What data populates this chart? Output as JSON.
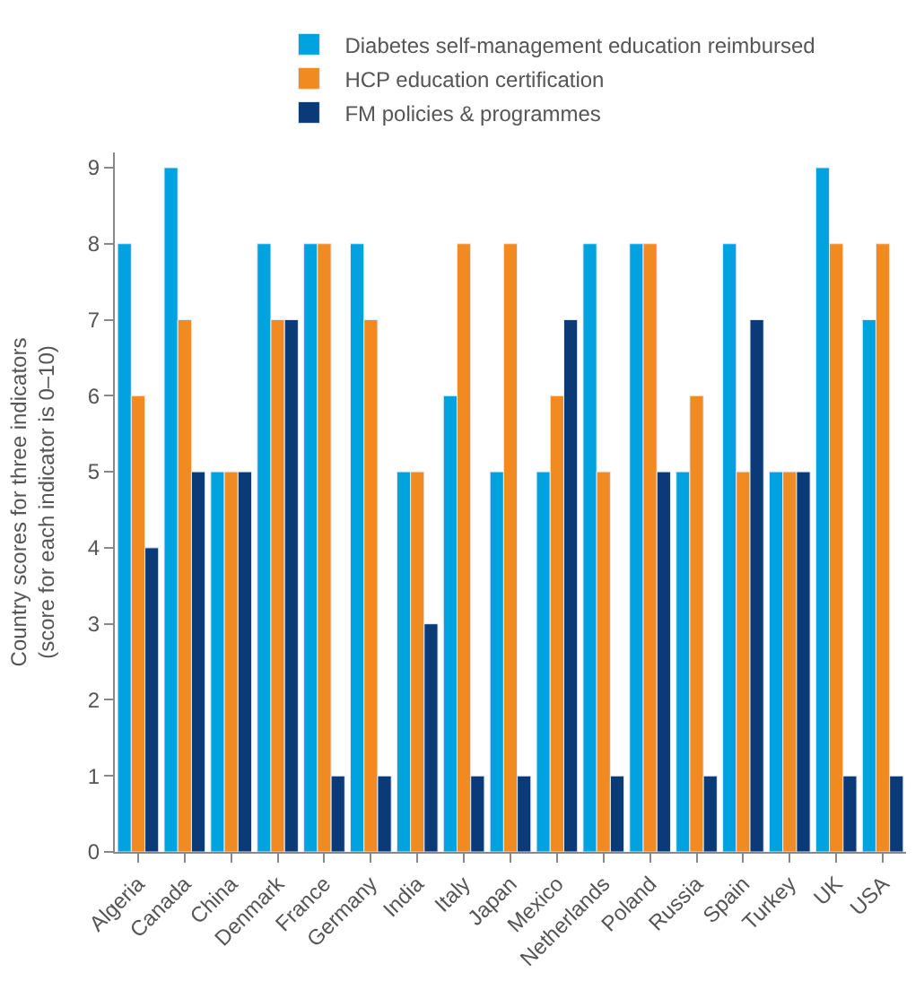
{
  "chart_data": {
    "type": "bar",
    "ylabel": "Country scores for three indicators\n(score for each indicator is 0–10)",
    "categories": [
      "Algeria",
      "Canada",
      "China",
      "Denmark",
      "France",
      "Germany",
      "India",
      "Italy",
      "Japan",
      "Mexico",
      "Netherlands",
      "Poland",
      "Russia",
      "Spain",
      "Turkey",
      "UK",
      "USA"
    ],
    "series": [
      {
        "name": "Diabetes self-management education reimbursed",
        "color": "#00a3e0",
        "values": [
          8,
          9,
          5,
          8,
          8,
          8,
          5,
          6,
          5,
          5,
          8,
          8,
          5,
          8,
          5,
          9,
          7
        ]
      },
      {
        "name": "HCP education certification",
        "color": "#f28a22",
        "values": [
          6,
          7,
          5,
          7,
          8,
          7,
          5,
          8,
          8,
          6,
          5,
          8,
          6,
          5,
          5,
          8,
          8
        ]
      },
      {
        "name": "FM policies & programmes",
        "color": "#0b3a78",
        "values": [
          4,
          5,
          5,
          7,
          1,
          1,
          3,
          1,
          1,
          7,
          1,
          5,
          1,
          7,
          5,
          1,
          1
        ]
      }
    ],
    "ylim": [
      0,
      9.2
    ],
    "yticks": [
      0,
      1,
      2,
      3,
      4,
      5,
      6,
      7,
      8,
      9
    ],
    "legend": "top right"
  }
}
